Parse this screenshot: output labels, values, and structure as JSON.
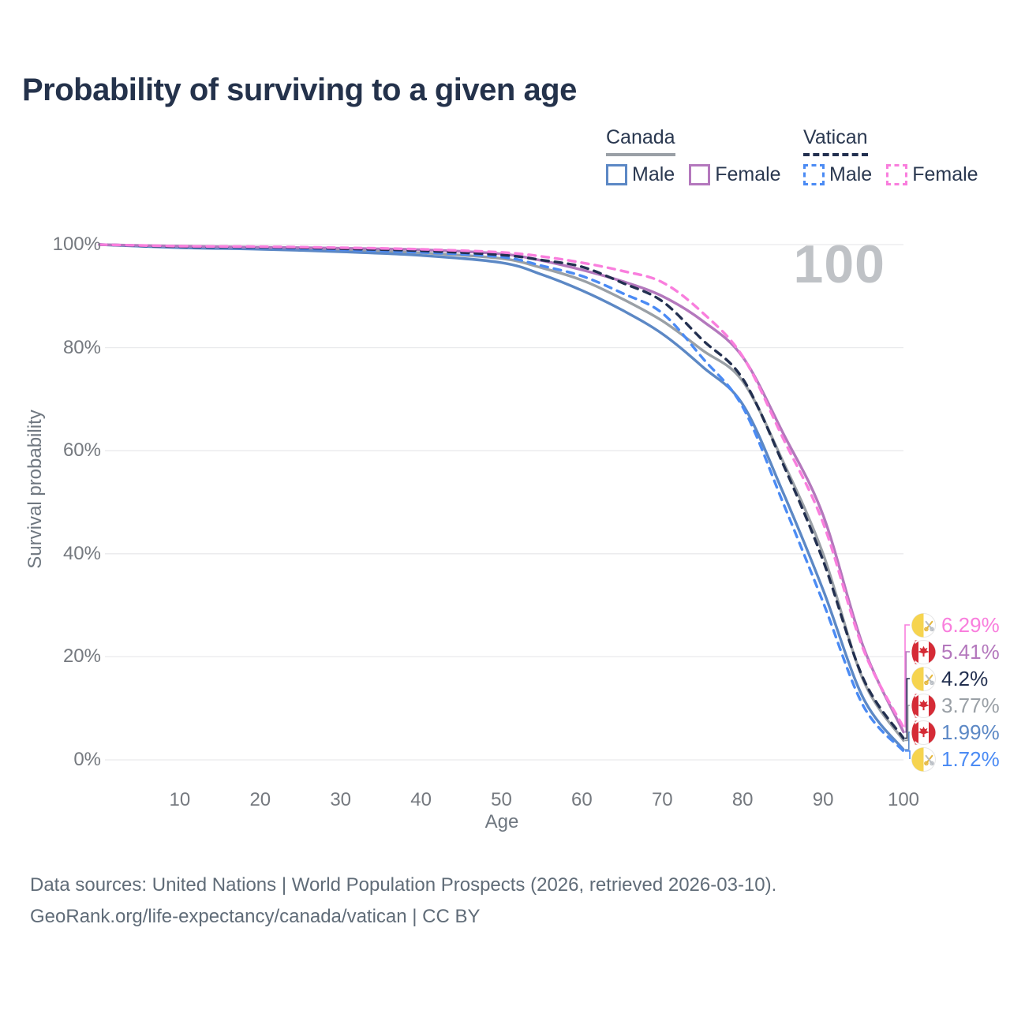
{
  "header": {
    "title": "Probability of surviving to a given age"
  },
  "legend": {
    "groups": [
      {
        "country": "Canada",
        "line_style": "solid",
        "underline_color": "#9aa0a6",
        "items": [
          {
            "label": "Male",
            "color": "#5c88c5",
            "dashed": false
          },
          {
            "label": "Female",
            "color": "#b478bd",
            "dashed": false
          }
        ]
      },
      {
        "country": "Vatican",
        "line_style": "dashed",
        "underline_color": "#233050",
        "items": [
          {
            "label": "Male",
            "color": "#4b8bf4",
            "dashed": true
          },
          {
            "label": "Female",
            "color": "#f97edd",
            "dashed": true
          }
        ]
      }
    ]
  },
  "watermark": {
    "age_label": "100"
  },
  "chart_data": {
    "type": "line",
    "title": "Probability of surviving to a given age",
    "xlabel": "Age",
    "ylabel": "Survival probability",
    "xlim": [
      0,
      100
    ],
    "ylim": [
      0,
      100
    ],
    "grid": "horizontal",
    "legend_position": "top-right",
    "x_ticks": [
      10,
      20,
      30,
      40,
      50,
      60,
      70,
      80,
      90,
      100
    ],
    "y_ticks": [
      0,
      20,
      40,
      60,
      80,
      100
    ],
    "y_tick_labels": [
      "0%",
      "20%",
      "40%",
      "60%",
      "80%",
      "100%"
    ],
    "x": [
      0,
      10,
      20,
      30,
      40,
      50,
      55,
      60,
      65,
      70,
      75,
      80,
      85,
      90,
      95,
      100
    ],
    "series": [
      {
        "name": "Vatican Female",
        "country": "Vatican",
        "sex": "Female",
        "line": "dashed",
        "color": "#f97edd",
        "flag": "vatican",
        "end_label": "6.29%",
        "end_value": 6.29,
        "values": [
          100,
          99.7,
          99.6,
          99.4,
          99.1,
          98.5,
          97.7,
          96.5,
          94.9,
          92.7,
          86.8,
          78.3,
          62.5,
          46.0,
          21.5,
          6.29
        ]
      },
      {
        "name": "Canada Female",
        "country": "Canada",
        "sex": "Female",
        "line": "solid",
        "color": "#b478bd",
        "flag": "canada",
        "end_label": "5.41%",
        "end_value": 5.41,
        "values": [
          100,
          99.7,
          99.5,
          99.3,
          99.0,
          98.2,
          96.9,
          95.1,
          92.9,
          90.0,
          85.2,
          78.2,
          63.5,
          47.5,
          22.0,
          5.41
        ]
      },
      {
        "name": "Vatican Overall",
        "country": "Vatican",
        "sex": "Overall",
        "line": "dashed",
        "color": "#233050",
        "flag": "vatican",
        "end_label": "4.2%",
        "end_value": 4.2,
        "values": [
          100,
          99.6,
          99.5,
          99.2,
          98.8,
          98.0,
          97.0,
          95.7,
          92.6,
          89.0,
          81.5,
          74.0,
          57.5,
          38.7,
          15.8,
          4.2
        ]
      },
      {
        "name": "Canada Overall",
        "country": "Canada",
        "sex": "Overall",
        "line": "solid",
        "color": "#9aa0a6",
        "flag": "canada",
        "end_label": "3.77%",
        "end_value": 3.77,
        "values": [
          100,
          99.5,
          99.3,
          98.9,
          98.4,
          97.3,
          95.5,
          93.1,
          89.5,
          85.2,
          79.5,
          73.5,
          58.0,
          40.0,
          15.5,
          3.77
        ]
      },
      {
        "name": "Canada Male",
        "country": "Canada",
        "sex": "Male",
        "line": "solid",
        "color": "#5c88c5",
        "flag": "canada",
        "end_label": "1.99%",
        "end_value": 1.99,
        "values": [
          100,
          99.4,
          99.1,
          98.6,
          97.9,
          96.5,
          94.2,
          91.1,
          87.3,
          82.7,
          76.3,
          69.0,
          52.0,
          33.0,
          12.0,
          1.99
        ]
      },
      {
        "name": "Vatican Male",
        "country": "Vatican",
        "sex": "Male",
        "line": "dashed",
        "color": "#4b8bf4",
        "flag": "vatican",
        "end_label": "1.72%",
        "end_value": 1.72,
        "values": [
          100,
          99.6,
          99.4,
          99.0,
          98.5,
          97.6,
          95.9,
          93.9,
          90.6,
          86.7,
          78.0,
          68.5,
          50.0,
          30.6,
          10.5,
          1.72
        ]
      }
    ]
  },
  "footer": {
    "line1": "Data sources: United Nations | World Population Prospects (2026, retrieved 2026-03-10).",
    "line2": "GeoRank.org/life-expectancy/canada/vatican | CC BY"
  }
}
